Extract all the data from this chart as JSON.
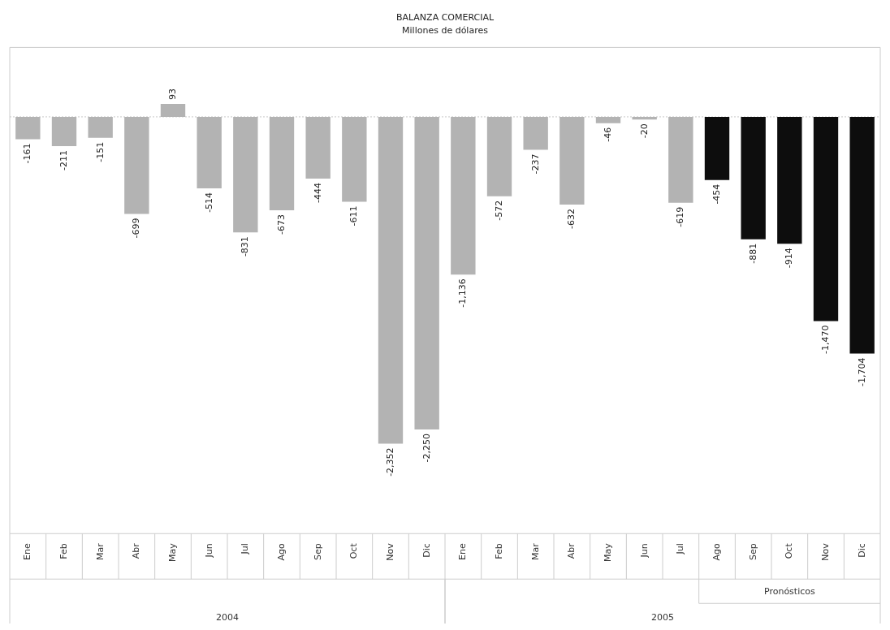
{
  "chart_data": {
    "type": "bar",
    "title": "BALANZA COMERCIAL",
    "subtitle": "Millones de dólares",
    "ref_lines": [
      {
        "axis": "y",
        "value": 0,
        "color": "#c8c8c8",
        "line_style": "dotted"
      }
    ],
    "categories": [
      "Ene",
      "Feb",
      "Mar",
      "Abr",
      "May",
      "Jun",
      "Jul",
      "Ago",
      "Sep",
      "Oct",
      "Nov",
      "Dic",
      "Ene",
      "Feb",
      "Mar",
      "Abr",
      "May",
      "Jun",
      "Jul",
      "Ago",
      "Sep",
      "Oct",
      "Nov",
      "Dic"
    ],
    "values": [
      -161,
      -211,
      -151,
      -699,
      93,
      -514,
      -831,
      -673,
      -444,
      -611,
      -2352,
      -2250,
      -1136,
      -572,
      -237,
      -632,
      -46,
      -20,
      -619,
      -454,
      -881,
      -914,
      -1470,
      -1704
    ],
    "colors": [
      "#b3b3b3",
      "#b3b3b3",
      "#b3b3b3",
      "#b3b3b3",
      "#b3b3b3",
      "#b3b3b3",
      "#b3b3b3",
      "#b3b3b3",
      "#b3b3b3",
      "#b3b3b3",
      "#b3b3b3",
      "#b3b3b3",
      "#b3b3b3",
      "#b3b3b3",
      "#b3b3b3",
      "#b3b3b3",
      "#b3b3b3",
      "#b3b3b3",
      "#b3b3b3",
      "#0d0d0d",
      "#0d0d0d",
      "#0d0d0d",
      "#0d0d0d",
      "#0d0d0d"
    ],
    "value_labels": [
      "-161",
      "-211",
      "-151",
      "-699",
      "93",
      "-514",
      "-831",
      "-673",
      "-444",
      "-611",
      "-2,352",
      "-2,250",
      "-1,136",
      "-572",
      "-237",
      "-632",
      "-46",
      "-20",
      "-619",
      "-454",
      "-881",
      "-914",
      "-1,470",
      "-1,704"
    ],
    "annotations": [
      "2004",
      "2005",
      "Pronósticos"
    ],
    "grid": false,
    "legend": false
  }
}
